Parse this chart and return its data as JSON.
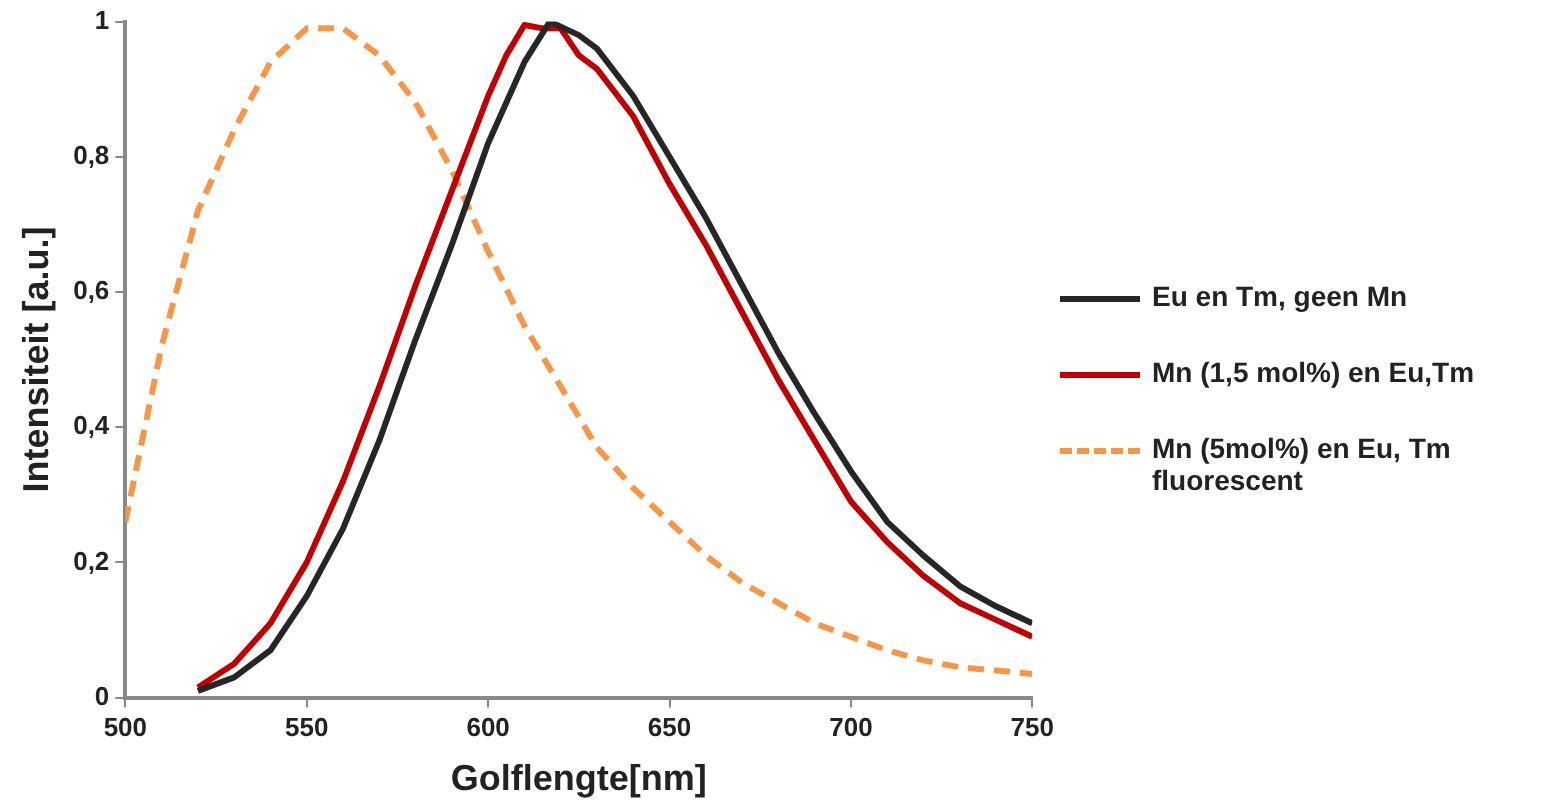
{
  "chart_data": {
    "type": "line",
    "xlabel": "Golflengte[nm]",
    "ylabel": "Intensiteit [a.u.]",
    "xlim": [
      500,
      750
    ],
    "xticks": [
      500,
      550,
      600,
      650,
      700,
      750
    ],
    "ylim": [
      0,
      1
    ],
    "yticks": [
      0,
      {
        "value": 0.2,
        "label": "0,2"
      },
      {
        "value": 0.4,
        "label": "0,4"
      },
      {
        "value": 0.6,
        "label": "0,6"
      },
      {
        "value": 0.8,
        "label": "0,8"
      },
      1
    ],
    "grid": false,
    "legend": "right",
    "marker": "none",
    "series": [
      {
        "name": "Eu en Tm, geen Mn",
        "color": "#262626",
        "line_style": "solid",
        "x": [
          520,
          530,
          540,
          550,
          560,
          570,
          580,
          590,
          600,
          610,
          617,
          625,
          630,
          640,
          650,
          660,
          670,
          680,
          690,
          700,
          710,
          720,
          730,
          740,
          750
        ],
        "values": [
          0.01,
          0.03,
          0.07,
          0.15,
          0.25,
          0.38,
          0.53,
          0.67,
          0.82,
          0.94,
          1.0,
          0.98,
          0.96,
          0.89,
          0.8,
          0.71,
          0.61,
          0.51,
          0.42,
          0.335,
          0.26,
          0.21,
          0.165,
          0.135,
          0.11
        ]
      },
      {
        "name": "Mn (1,5 mol%) en Eu,Tm",
        "color": "#c00000",
        "line_style": "solid",
        "x": [
          520,
          530,
          540,
          550,
          560,
          570,
          580,
          590,
          600,
          605,
          610,
          615,
          620,
          625,
          630,
          640,
          650,
          660,
          670,
          680,
          690,
          700,
          710,
          720,
          730,
          740,
          750
        ],
        "values": [
          0.015,
          0.05,
          0.11,
          0.2,
          0.32,
          0.46,
          0.61,
          0.75,
          0.89,
          0.95,
          0.995,
          0.99,
          0.99,
          0.95,
          0.93,
          0.86,
          0.76,
          0.67,
          0.57,
          0.47,
          0.38,
          0.29,
          0.23,
          0.18,
          0.14,
          0.115,
          0.09
        ]
      },
      {
        "name": "Mn (5mol%) en Eu, Tm fluorescent",
        "color": "#f79646",
        "line_style": "dashed",
        "x": [
          500,
          510,
          520,
          530,
          540,
          550,
          560,
          570,
          580,
          590,
          600,
          610,
          620,
          630,
          640,
          650,
          660,
          670,
          680,
          690,
          700,
          710,
          720,
          730,
          740,
          750
        ],
        "values": [
          0.26,
          0.52,
          0.72,
          0.84,
          0.94,
          0.99,
          0.99,
          0.95,
          0.88,
          0.78,
          0.66,
          0.55,
          0.46,
          0.37,
          0.31,
          0.26,
          0.21,
          0.17,
          0.14,
          0.11,
          0.09,
          0.07,
          0.055,
          0.045,
          0.04,
          0.035
        ]
      }
    ]
  }
}
